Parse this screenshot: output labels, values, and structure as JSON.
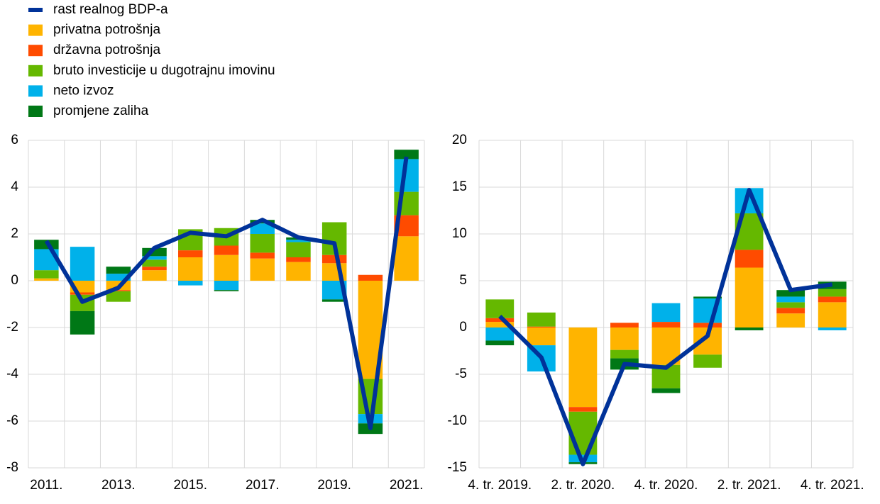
{
  "chart_data": [
    {
      "type": "bar",
      "stacked": true,
      "grid": true,
      "categories": [
        "2011.",
        null,
        "2013.",
        null,
        "2015.",
        null,
        "2017.",
        null,
        "2019.",
        null,
        "2021."
      ],
      "ylim": [
        -8,
        6
      ],
      "yticks": [
        -8,
        -6,
        -4,
        -2,
        0,
        2,
        4,
        6
      ],
      "series": [
        {
          "name": "rast realnog BDP-a",
          "type": "line",
          "color": "#003299",
          "values": [
            1.7,
            -0.9,
            -0.3,
            1.4,
            2.05,
            1.9,
            2.6,
            1.85,
            1.6,
            -6.3,
            5.3
          ]
        },
        {
          "name": "privatna potrošnja",
          "color": "#FFB400",
          "values": [
            0.1,
            -0.5,
            -0.4,
            0.45,
            1.0,
            1.1,
            0.95,
            0.8,
            0.75,
            -4.2,
            1.9
          ]
        },
        {
          "name": "državna potrošnja",
          "color": "#FF4B00",
          "values": [
            0.0,
            -0.1,
            -0.05,
            0.15,
            0.3,
            0.4,
            0.25,
            0.2,
            0.35,
            0.25,
            0.9
          ]
        },
        {
          "name": "bruto investicije u dugotrajnu imovinu",
          "color": "#65B800",
          "values": [
            0.35,
            -0.7,
            -0.45,
            0.3,
            0.9,
            0.75,
            0.8,
            0.65,
            1.4,
            -1.5,
            1.0
          ]
        },
        {
          "name": "neto izvoz",
          "color": "#00B1EA",
          "values": [
            0.9,
            1.45,
            0.3,
            0.15,
            -0.2,
            -0.4,
            0.45,
            0.1,
            -0.8,
            -0.4,
            1.4
          ]
        },
        {
          "name": "promjene zaliha",
          "color": "#007816",
          "values": [
            0.4,
            -1.0,
            0.3,
            0.35,
            0.0,
            -0.05,
            0.15,
            0.1,
            -0.1,
            -0.45,
            0.4
          ]
        }
      ]
    },
    {
      "type": "bar",
      "stacked": true,
      "grid": true,
      "categories": [
        "4. tr. 2019.",
        null,
        "2. tr. 2020.",
        null,
        "4. tr. 2020.",
        null,
        "2. tr. 2021.",
        null,
        "4. tr. 2021."
      ],
      "ylim": [
        -15,
        20
      ],
      "yticks": [
        -15,
        -10,
        -5,
        0,
        5,
        10,
        15,
        20
      ],
      "series": [
        {
          "type": "line",
          "color": "#003299",
          "values": [
            1.2,
            -3.2,
            -14.6,
            -3.9,
            -4.3,
            -0.9,
            14.7,
            4.0,
            4.6
          ]
        },
        {
          "color": "#FFB400",
          "values": [
            0.6,
            -1.9,
            -8.5,
            -2.4,
            -4.0,
            -2.9,
            6.4,
            1.5,
            2.7
          ]
        },
        {
          "color": "#FF4B00",
          "values": [
            0.4,
            0.1,
            -0.5,
            0.5,
            0.6,
            0.5,
            1.9,
            0.6,
            0.6
          ]
        },
        {
          "color": "#65B800",
          "values": [
            2.0,
            1.5,
            -4.6,
            -0.9,
            -2.5,
            -1.4,
            3.9,
            0.6,
            0.8
          ]
        },
        {
          "color": "#00B1EA",
          "values": [
            -1.4,
            -2.8,
            -0.8,
            0.0,
            2.0,
            2.6,
            2.7,
            0.6,
            -0.3
          ]
        },
        {
          "color": "#007816",
          "values": [
            -0.5,
            0.0,
            -0.2,
            -1.2,
            -0.5,
            0.2,
            -0.3,
            0.7,
            0.8
          ]
        }
      ]
    }
  ]
}
